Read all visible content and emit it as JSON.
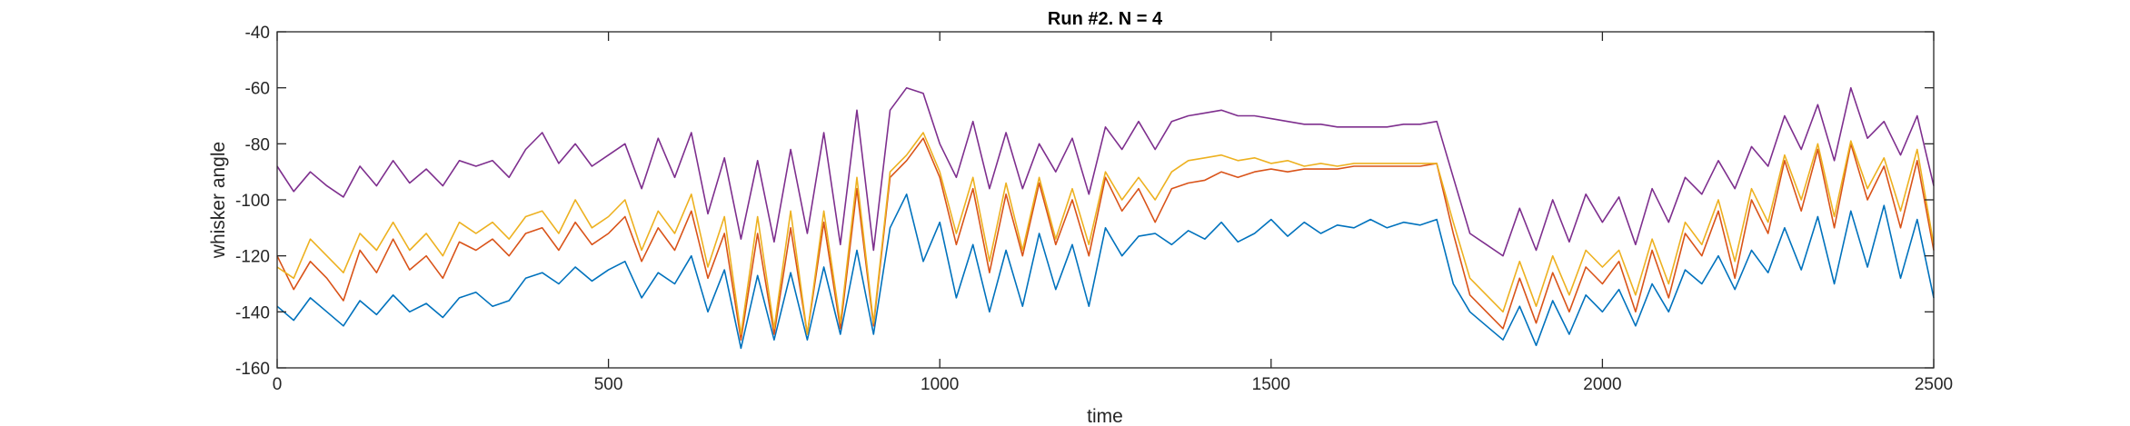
{
  "chart_data": {
    "type": "line",
    "title": "Run #2. N = 4",
    "xlabel": "time",
    "ylabel": "whisker angle",
    "xlim": [
      0,
      2500
    ],
    "ylim": [
      -160,
      -40
    ],
    "xticks": [
      0,
      500,
      1000,
      1500,
      2000,
      2500
    ],
    "yticks": [
      -160,
      -140,
      -120,
      -100,
      -80,
      -60,
      -40
    ],
    "grid": false,
    "legend": "none",
    "colors": [
      "#0072BD",
      "#D95319",
      "#EDB120",
      "#7E2F8E"
    ],
    "x": [
      0,
      25,
      50,
      75,
      100,
      125,
      150,
      175,
      200,
      225,
      250,
      275,
      300,
      325,
      350,
      375,
      400,
      425,
      450,
      475,
      500,
      525,
      550,
      575,
      600,
      625,
      650,
      675,
      700,
      725,
      750,
      775,
      800,
      825,
      850,
      875,
      900,
      925,
      950,
      975,
      1000,
      1025,
      1050,
      1075,
      1100,
      1125,
      1150,
      1175,
      1200,
      1225,
      1250,
      1275,
      1300,
      1325,
      1350,
      1375,
      1400,
      1425,
      1450,
      1475,
      1500,
      1525,
      1550,
      1575,
      1600,
      1625,
      1650,
      1675,
      1700,
      1725,
      1750,
      1775,
      1800,
      1825,
      1850,
      1875,
      1900,
      1925,
      1950,
      1975,
      2000,
      2025,
      2050,
      2075,
      2100,
      2125,
      2150,
      2175,
      2200,
      2225,
      2250,
      2275,
      2300,
      2325,
      2350,
      2375,
      2400,
      2425,
      2450,
      2475,
      2500
    ],
    "series": [
      {
        "values": [
          -138,
          -143,
          -135,
          -140,
          -145,
          -136,
          -141,
          -134,
          -140,
          -137,
          -142,
          -135,
          -133,
          -138,
          -136,
          -128,
          -126,
          -130,
          -124,
          -129,
          -125,
          -122,
          -135,
          -126,
          -130,
          -120,
          -140,
          -125,
          -153,
          -127,
          -150,
          -126,
          -150,
          -124,
          -148,
          -118,
          -148,
          -110,
          -98,
          -122,
          -108,
          -135,
          -116,
          -140,
          -118,
          -138,
          -112,
          -132,
          -116,
          -138,
          -110,
          -120,
          -113,
          -112,
          -116,
          -111,
          -114,
          -108,
          -115,
          -112,
          -107,
          -113,
          -108,
          -112,
          -109,
          -110,
          -107,
          -110,
          -108,
          -109,
          -107,
          -130,
          -140,
          -145,
          -150,
          -138,
          -152,
          -136,
          -148,
          -134,
          -140,
          -132,
          -145,
          -130,
          -140,
          -125,
          -130,
          -120,
          -132,
          -118,
          -126,
          -110,
          -125,
          -106,
          -130,
          -104,
          -124,
          -102,
          -128,
          -107,
          -135
        ]
      },
      {
        "values": [
          -120,
          -132,
          -122,
          -128,
          -136,
          -118,
          -126,
          -114,
          -125,
          -120,
          -128,
          -115,
          -118,
          -114,
          -120,
          -112,
          -110,
          -118,
          -108,
          -116,
          -112,
          -106,
          -122,
          -110,
          -118,
          -104,
          -128,
          -112,
          -150,
          -112,
          -148,
          -110,
          -148,
          -108,
          -146,
          -96,
          -145,
          -92,
          -86,
          -78,
          -92,
          -116,
          -96,
          -126,
          -98,
          -120,
          -94,
          -116,
          -100,
          -120,
          -92,
          -104,
          -96,
          -108,
          -96,
          -94,
          -93,
          -90,
          -92,
          -90,
          -89,
          -90,
          -89,
          -89,
          -89,
          -88,
          -88,
          -88,
          -88,
          -88,
          -87,
          -112,
          -134,
          -140,
          -146,
          -128,
          -144,
          -126,
          -140,
          -124,
          -130,
          -122,
          -140,
          -118,
          -135,
          -112,
          -120,
          -104,
          -128,
          -100,
          -112,
          -86,
          -104,
          -82,
          -110,
          -80,
          -100,
          -88,
          -110,
          -86,
          -118
        ]
      },
      {
        "values": [
          -124,
          -128,
          -114,
          -120,
          -126,
          -112,
          -118,
          -108,
          -118,
          -112,
          -120,
          -108,
          -112,
          -108,
          -114,
          -106,
          -104,
          -112,
          -100,
          -110,
          -106,
          -100,
          -118,
          -104,
          -112,
          -98,
          -124,
          -106,
          -148,
          -106,
          -146,
          -104,
          -148,
          -104,
          -144,
          -92,
          -144,
          -90,
          -84,
          -76,
          -90,
          -112,
          -92,
          -122,
          -94,
          -118,
          -92,
          -114,
          -96,
          -116,
          -90,
          -100,
          -92,
          -100,
          -90,
          -86,
          -85,
          -84,
          -86,
          -85,
          -87,
          -86,
          -88,
          -87,
          -88,
          -87,
          -87,
          -87,
          -87,
          -87,
          -87,
          -108,
          -128,
          -134,
          -140,
          -122,
          -138,
          -120,
          -134,
          -118,
          -124,
          -118,
          -134,
          -114,
          -130,
          -108,
          -116,
          -100,
          -122,
          -96,
          -108,
          -84,
          -100,
          -80,
          -106,
          -79,
          -96,
          -85,
          -104,
          -82,
          -116
        ]
      },
      {
        "values": [
          -88,
          -97,
          -90,
          -95,
          -99,
          -88,
          -95,
          -86,
          -94,
          -89,
          -95,
          -86,
          -88,
          -86,
          -92,
          -82,
          -76,
          -87,
          -80,
          -88,
          -84,
          -80,
          -96,
          -78,
          -92,
          -76,
          -105,
          -85,
          -114,
          -86,
          -115,
          -82,
          -112,
          -76,
          -116,
          -68,
          -118,
          -68,
          -60,
          -62,
          -80,
          -92,
          -72,
          -96,
          -76,
          -96,
          -80,
          -90,
          -78,
          -98,
          -74,
          -82,
          -72,
          -82,
          -72,
          -70,
          -69,
          -68,
          -70,
          -70,
          -71,
          -72,
          -73,
          -73,
          -74,
          -74,
          -74,
          -74,
          -73,
          -73,
          -72,
          -92,
          -112,
          -116,
          -120,
          -103,
          -118,
          -100,
          -115,
          -98,
          -108,
          -99,
          -116,
          -96,
          -108,
          -92,
          -98,
          -86,
          -96,
          -81,
          -88,
          -70,
          -82,
          -66,
          -86,
          -60,
          -78,
          -72,
          -84,
          -70,
          -95
        ]
      }
    ]
  }
}
